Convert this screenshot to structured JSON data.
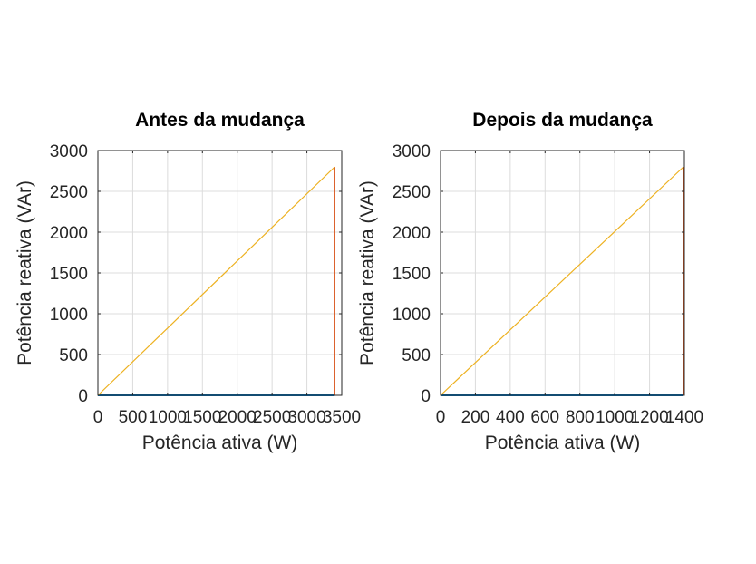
{
  "chart_data": [
    {
      "type": "line",
      "title": "Antes da mudança",
      "xlabel": "Potência ativa (W)",
      "ylabel": "Potência reativa (VAr)",
      "xlim": [
        0,
        3500
      ],
      "ylim": [
        0,
        3000
      ],
      "xticks": [
        0,
        500,
        1000,
        1500,
        2000,
        2500,
        3000,
        3500
      ],
      "yticks": [
        0,
        500,
        1000,
        1500,
        2000,
        2500,
        3000
      ],
      "xtick_labels": [
        "0",
        "500",
        "1000",
        "1500",
        "2000",
        "2500",
        "3000",
        "3500"
      ],
      "ytick_labels": [
        "0",
        "500",
        "1000",
        "1500",
        "2000",
        "2500",
        "3000"
      ],
      "grid": true,
      "series": [
        {
          "color": "#0072BD",
          "x": [
            0,
            3400
          ],
          "y": [
            0,
            0
          ]
        },
        {
          "color": "#D95319",
          "x": [
            3400,
            3400
          ],
          "y": [
            0,
            2800
          ]
        },
        {
          "color": "#EDB120",
          "x": [
            0,
            3400
          ],
          "y": [
            0,
            2800
          ]
        }
      ]
    },
    {
      "type": "line",
      "title": "Depois da mudança",
      "xlabel": "Potência ativa (W)",
      "ylabel": "Potência reativa (VAr)",
      "xlim": [
        0,
        1400
      ],
      "ylim": [
        0,
        3000
      ],
      "xticks": [
        0,
        200,
        400,
        600,
        800,
        1000,
        1200,
        1400
      ],
      "yticks": [
        0,
        500,
        1000,
        1500,
        2000,
        2500,
        3000
      ],
      "xtick_labels": [
        "0",
        "200",
        "400",
        "600",
        "800",
        "1000",
        "1200",
        "1400"
      ],
      "ytick_labels": [
        "0",
        "500",
        "1000",
        "1500",
        "2000",
        "2500",
        "3000"
      ],
      "grid": true,
      "series": [
        {
          "color": "#0072BD",
          "x": [
            0,
            1395
          ],
          "y": [
            0,
            0
          ]
        },
        {
          "color": "#D95319",
          "x": [
            1395,
            1395
          ],
          "y": [
            0,
            2800
          ]
        },
        {
          "color": "#EDB120",
          "x": [
            0,
            1395
          ],
          "y": [
            0,
            2800
          ]
        }
      ]
    }
  ]
}
